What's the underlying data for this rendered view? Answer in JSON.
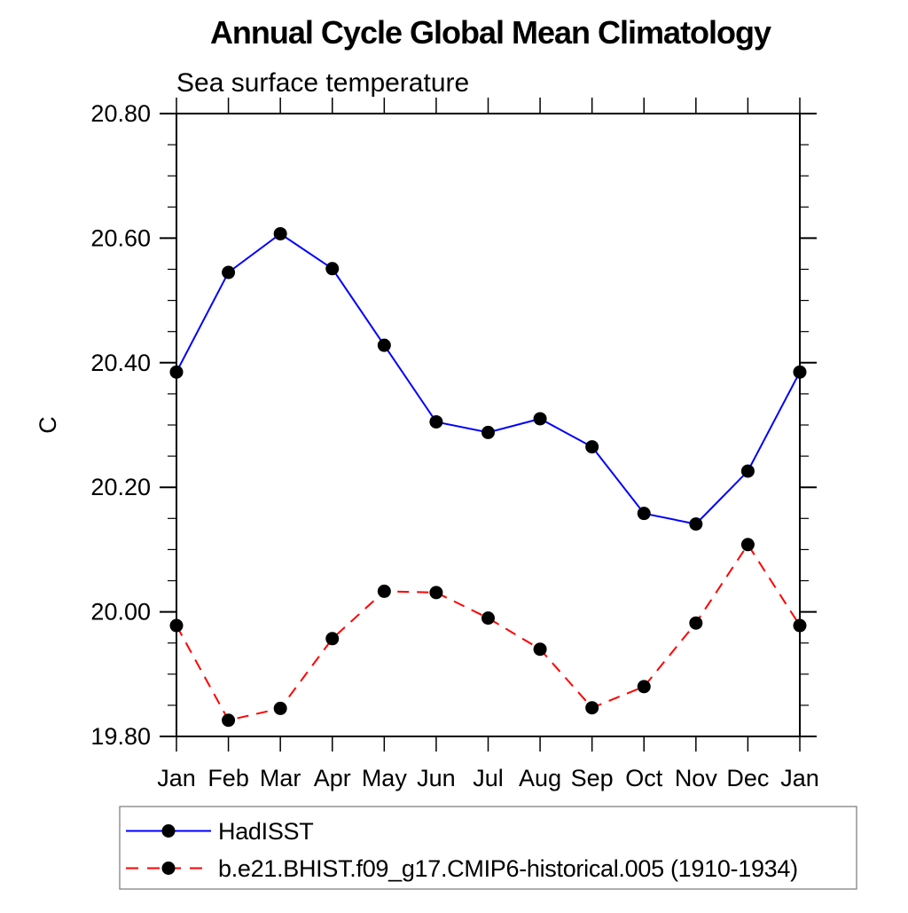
{
  "page": {
    "background": "#ffffff"
  },
  "chart_data": {
    "type": "line",
    "title": "Annual Cycle Global Mean Climatology",
    "subtitle": "Sea surface temperature",
    "ylabel": "C",
    "xlabel": "",
    "categories": [
      "Jan",
      "Feb",
      "Mar",
      "Apr",
      "May",
      "Jun",
      "Jul",
      "Aug",
      "Sep",
      "Oct",
      "Nov",
      "Dec",
      "Jan"
    ],
    "ylim": [
      19.8,
      20.8
    ],
    "ytick_major_step": 0.2,
    "ytick_minor_step": 0.05,
    "ytick_labels": [
      "19.80",
      "20.00",
      "20.20",
      "20.40",
      "20.60",
      "20.80"
    ],
    "grid": false,
    "frame": "box-with-outward-ticks",
    "legend_position": "bottom-left",
    "axis_color": "#000000",
    "marker_shape": "filled-circle",
    "series": [
      {
        "name": "HadISST",
        "color": "#0000ff",
        "line_style": "solid",
        "marker_color": "#000000",
        "values": [
          20.385,
          20.545,
          20.607,
          20.551,
          20.428,
          20.305,
          20.288,
          20.31,
          20.265,
          20.158,
          20.141,
          20.226,
          20.385
        ]
      },
      {
        "name": "b.e21.BHIST.f09_g17.CMIP6-historical.005 (1910-1934)",
        "color": "#ff0000",
        "line_style": "dashed",
        "marker_color": "#000000",
        "values": [
          19.978,
          19.826,
          19.845,
          19.957,
          20.033,
          20.031,
          19.99,
          19.94,
          19.846,
          19.88,
          19.982,
          20.108,
          19.978
        ]
      }
    ]
  }
}
